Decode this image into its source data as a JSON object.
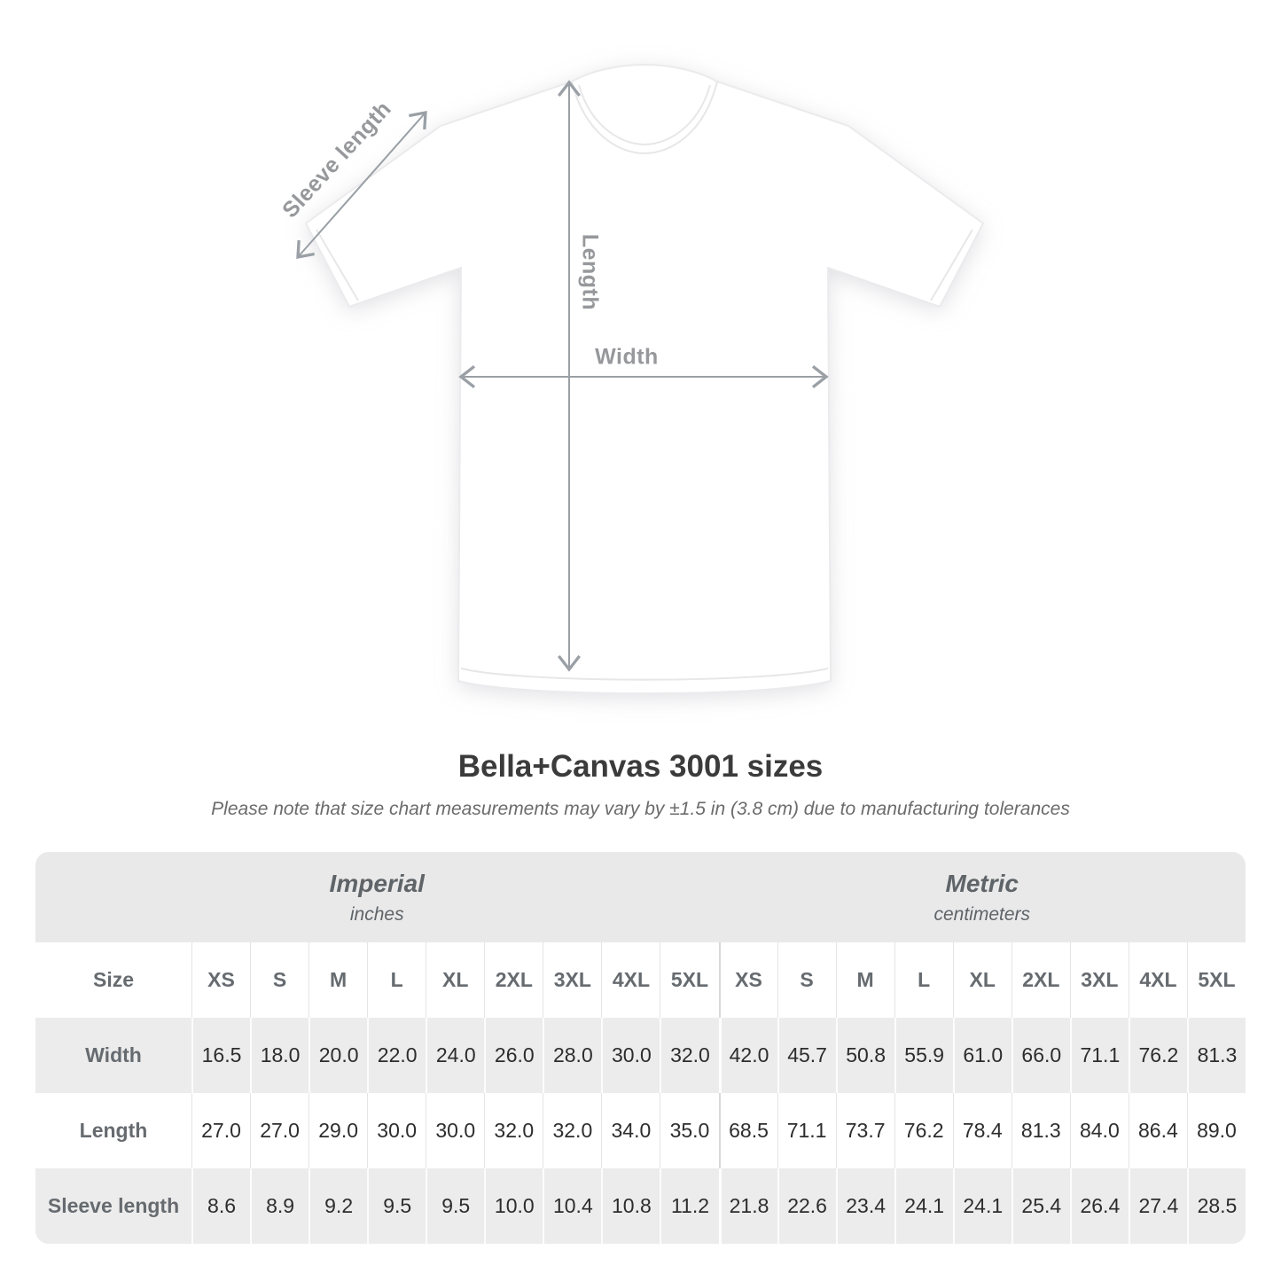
{
  "diagram": {
    "labels": {
      "sleeve": "Sleeve length",
      "length": "Length",
      "width": "Width"
    }
  },
  "heading": {
    "title": "Bella+Canvas 3001 sizes",
    "subtitle": "Please note that size chart measurements may vary by ±1.5 in (3.8 cm) due to manufacturing tolerances"
  },
  "size_chart": {
    "corner_label": "Size",
    "groups": [
      {
        "name": "Imperial",
        "unit": "inches"
      },
      {
        "name": "Metric",
        "unit": "centimeters"
      }
    ],
    "sizes": [
      "XS",
      "S",
      "M",
      "L",
      "XL",
      "2XL",
      "3XL",
      "4XL",
      "5XL"
    ],
    "rows": [
      {
        "label": "Width",
        "imperial": [
          "16.5",
          "18.0",
          "20.0",
          "22.0",
          "24.0",
          "26.0",
          "28.0",
          "30.0",
          "32.0"
        ],
        "metric": [
          "42.0",
          "45.7",
          "50.8",
          "55.9",
          "61.0",
          "66.0",
          "71.1",
          "76.2",
          "81.3"
        ]
      },
      {
        "label": "Length",
        "imperial": [
          "27.0",
          "27.0",
          "29.0",
          "30.0",
          "30.0",
          "32.0",
          "32.0",
          "34.0",
          "35.0"
        ],
        "metric": [
          "68.5",
          "71.1",
          "73.7",
          "76.2",
          "78.4",
          "81.3",
          "84.0",
          "86.4",
          "89.0"
        ]
      },
      {
        "label": "Sleeve length",
        "imperial": [
          "8.6",
          "8.9",
          "9.2",
          "9.5",
          "9.5",
          "10.0",
          "10.4",
          "10.8",
          "11.2"
        ],
        "metric": [
          "21.8",
          "22.6",
          "23.4",
          "24.1",
          "24.1",
          "25.4",
          "26.4",
          "27.4",
          "28.5"
        ]
      }
    ]
  },
  "chart_data": {
    "type": "table",
    "title": "Bella+Canvas 3001 sizes",
    "note": "Please note that size chart measurements may vary by ±1.5 in (3.8 cm) due to manufacturing tolerances",
    "column_groups": [
      {
        "name": "Imperial",
        "unit": "inches"
      },
      {
        "name": "Metric",
        "unit": "centimeters"
      }
    ],
    "columns": [
      "Size",
      "XS",
      "S",
      "M",
      "L",
      "XL",
      "2XL",
      "3XL",
      "4XL",
      "5XL"
    ],
    "rows_imperial": [
      [
        "Width",
        16.5,
        18.0,
        20.0,
        22.0,
        24.0,
        26.0,
        28.0,
        30.0,
        32.0
      ],
      [
        "Length",
        27.0,
        27.0,
        29.0,
        30.0,
        30.0,
        32.0,
        32.0,
        34.0,
        35.0
      ],
      [
        "Sleeve length",
        8.6,
        8.9,
        9.2,
        9.5,
        9.5,
        10.0,
        10.4,
        10.8,
        11.2
      ]
    ],
    "rows_metric": [
      [
        "Width",
        42.0,
        45.7,
        50.8,
        55.9,
        61.0,
        66.0,
        71.1,
        76.2,
        81.3
      ],
      [
        "Length",
        68.5,
        71.1,
        73.7,
        76.2,
        78.4,
        81.3,
        84.0,
        86.4,
        89.0
      ],
      [
        "Sleeve length",
        21.8,
        22.6,
        23.4,
        24.1,
        24.1,
        25.4,
        26.4,
        27.4,
        28.5
      ]
    ]
  },
  "colors": {
    "panel_gray": "#e9e9e9",
    "row_alt_gray": "#ececec",
    "header_text": "#666b70",
    "cell_text": "#2d2d2d",
    "title_text": "#3b3b3b",
    "annotation_gray": "#9aa0a5"
  }
}
